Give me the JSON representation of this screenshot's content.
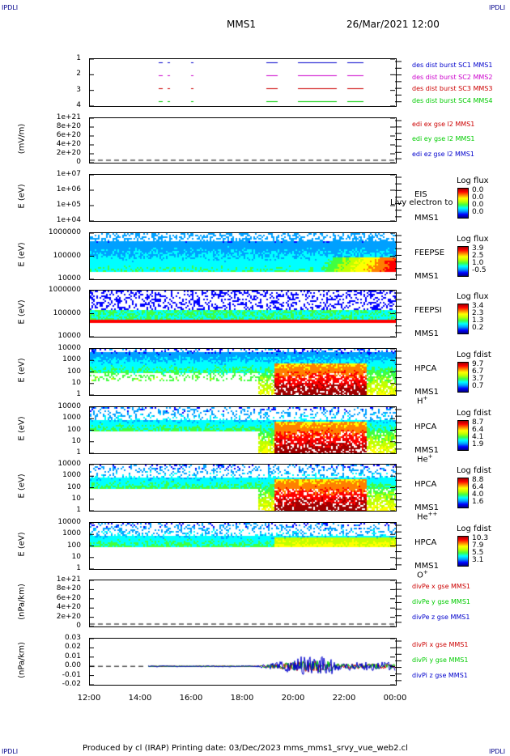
{
  "header": {
    "left_corner": "IPDLI",
    "right_corner": "IPDLI",
    "spacecraft": "MMS1",
    "datetime": "26/Mar/2021 12:00"
  },
  "footer": {
    "left_corner": "IPDLI",
    "right_corner": "IPDLI",
    "text": "Produced by cl (IRAP)    Printing date: 03/Dec/2023    mms_mms1_srvy_vue_web2.cl"
  },
  "colors": {
    "scale": [
      "#000080",
      "#0000ff",
      "#00a0ff",
      "#00ffff",
      "#40ff40",
      "#c0ff00",
      "#ffff00",
      "#ff8000",
      "#ff0000",
      "#a00000"
    ]
  },
  "chart_data": [
    {
      "type": "line",
      "id": "burst",
      "ylabel": "",
      "yticks": [
        "1",
        "2",
        "3",
        "4"
      ],
      "series": [
        {
          "name": "des dist burst SC1 MMS1",
          "color": "#0000cc"
        },
        {
          "name": "des dist burst SC2 MMS2",
          "color": "#cc00cc"
        },
        {
          "name": "des dist burst SC3 MMS3",
          "color": "#cc0000"
        },
        {
          "name": "des dist burst SC4 MMS4",
          "color": "#00cc00"
        }
      ]
    },
    {
      "type": "line",
      "id": "edi",
      "ylabel": "(mV/m)",
      "yticks": [
        "1e+21",
        "8e+20",
        "6e+20",
        "4e+20",
        "2e+20",
        "0"
      ],
      "series": [
        {
          "name": "edi ex gse l2 MMS1",
          "color": "#cc0000"
        },
        {
          "name": "edi ey gse l2 MMS1",
          "color": "#00cc00"
        },
        {
          "name": "edi ez gse l2 MMS1",
          "color": "#0000cc"
        }
      ]
    },
    {
      "type": "heatmap",
      "id": "eis",
      "ylabel": "E (eV)",
      "yticks": [
        "1e+07",
        "1e+06",
        "1e+05",
        "1e+04"
      ],
      "instrument": "EIS",
      "instrument2": "MMS1",
      "overlay": "Livy electron to",
      "colorbar": {
        "title": "Log flux",
        "ticks": [
          "0.0",
          "0.0",
          "0.0",
          "0.0"
        ]
      }
    },
    {
      "type": "heatmap",
      "id": "feepse",
      "ylabel": "E (eV)",
      "yticks": [
        "1000000",
        "100000",
        "10000"
      ],
      "instrument": "FEEPSE",
      "instrument2": "MMS1",
      "colorbar": {
        "title": "Log flux",
        "ticks": [
          "3.9",
          "2.5",
          "1.0",
          "-0.5"
        ]
      }
    },
    {
      "type": "heatmap",
      "id": "feepsi",
      "ylabel": "E (eV)",
      "yticks": [
        "1000000",
        "100000",
        "10000"
      ],
      "instrument": "FEEPSI",
      "instrument2": "MMS1",
      "colorbar": {
        "title": "Log flux",
        "ticks": [
          "3.4",
          "2.3",
          "1.3",
          "0.2"
        ]
      }
    },
    {
      "type": "heatmap",
      "id": "hpca_h",
      "ylabel": "E (eV)",
      "yticks": [
        "10000",
        "1000",
        "100",
        "10",
        "1"
      ],
      "instrument": "HPCA",
      "instrument2": "MMS1",
      "species": "H",
      "charge": "+",
      "colorbar": {
        "title": "Log fdist",
        "ticks": [
          "9.7",
          "6.7",
          "3.7",
          "0.7"
        ]
      }
    },
    {
      "type": "heatmap",
      "id": "hpca_he",
      "ylabel": "E (eV)",
      "yticks": [
        "10000",
        "1000",
        "100",
        "10",
        "1"
      ],
      "instrument": "HPCA",
      "instrument2": "MMS1",
      "species": "He",
      "charge": "+",
      "colorbar": {
        "title": "Log fdist",
        "ticks": [
          "8.7",
          "6.4",
          "4.1",
          "1.9"
        ]
      }
    },
    {
      "type": "heatmap",
      "id": "hpca_he2",
      "ylabel": "E (eV)",
      "yticks": [
        "10000",
        "1000",
        "100",
        "10",
        "1"
      ],
      "instrument": "HPCA",
      "instrument2": "MMS1",
      "species": "He",
      "charge": "++",
      "colorbar": {
        "title": "Log fdist",
        "ticks": [
          "8.8",
          "6.4",
          "4.0",
          "1.6"
        ]
      }
    },
    {
      "type": "heatmap",
      "id": "hpca_o",
      "ylabel": "E (eV)",
      "yticks": [
        "10000",
        "1000",
        "100",
        "10",
        "1"
      ],
      "instrument": "HPCA",
      "instrument2": "MMS1",
      "species": "O",
      "charge": "+",
      "colorbar": {
        "title": "Log fdist",
        "ticks": [
          "10.3",
          "7.9",
          "5.5",
          "3.1"
        ]
      }
    },
    {
      "type": "line",
      "id": "divpe",
      "ylabel": "(nPa/km)",
      "yticks": [
        "1e+21",
        "8e+20",
        "6e+20",
        "4e+20",
        "2e+20",
        "0"
      ],
      "series": [
        {
          "name": "divPe x gse MMS1",
          "color": "#cc0000"
        },
        {
          "name": "divPe y gse MMS1",
          "color": "#00cc00"
        },
        {
          "name": "divPe z gse MMS1",
          "color": "#0000cc"
        }
      ]
    },
    {
      "type": "line",
      "id": "divpi",
      "ylabel": "(nPa/km)",
      "yticks": [
        "0.03",
        "0.02",
        "0.01",
        "0.00",
        "-0.01",
        "-0.02"
      ],
      "series": [
        {
          "name": "divPi x gse MMS1",
          "color": "#cc0000"
        },
        {
          "name": "divPi y gse MMS1",
          "color": "#00cc00"
        },
        {
          "name": "divPi z gse MMS1",
          "color": "#0000cc"
        }
      ]
    }
  ],
  "xaxis": {
    "ticks": [
      "12:00",
      "14:00",
      "16:00",
      "18:00",
      "20:00",
      "22:00",
      "00:00"
    ]
  }
}
